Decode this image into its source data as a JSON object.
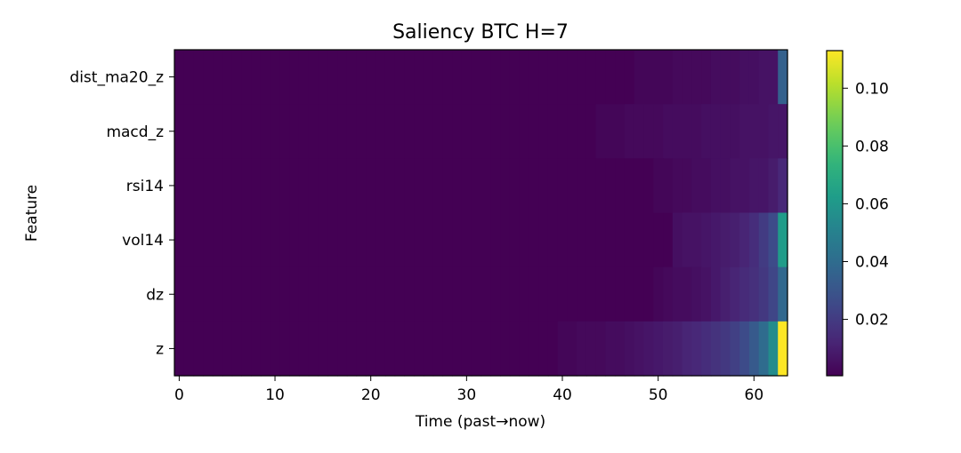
{
  "chart_data": {
    "type": "heatmap",
    "title": "Saliency BTC H=7",
    "xlabel": "Time (past→now)",
    "ylabel": "Feature",
    "features": [
      "dist_ma20_z",
      "macd_z",
      "rsi14",
      "vol14",
      "dz",
      "z"
    ],
    "x_range": [
      0,
      63
    ],
    "x_ticks": [
      0,
      10,
      20,
      30,
      40,
      50,
      60
    ],
    "colormap": "viridis",
    "color_range": [
      0.0005,
      0.113
    ],
    "colorbar_ticks": [
      0.02,
      0.04,
      0.06,
      0.08,
      0.1
    ],
    "colorbar_tick_labels": [
      "0.02",
      "0.04",
      "0.06",
      "0.08",
      "0.10"
    ],
    "rows": [
      {
        "feature": "dist_ma20_z",
        "start": 0.0005,
        "ramp_start": 48,
        "values_tail": [
          0.002,
          0.002,
          0.002,
          0.002,
          0.003,
          0.003,
          0.003,
          0.003,
          0.004,
          0.004,
          0.004,
          0.005,
          0.005,
          0.006,
          0.006,
          0.035
        ]
      },
      {
        "feature": "macd_z",
        "start": 0.0005,
        "ramp_start": 44,
        "values_tail": [
          0.002,
          0.002,
          0.002,
          0.003,
          0.003,
          0.003,
          0.003,
          0.004,
          0.004,
          0.004,
          0.004,
          0.005,
          0.005,
          0.005,
          0.005,
          0.006,
          0.006,
          0.006,
          0.007,
          0.007
        ]
      },
      {
        "feature": "rsi14",
        "start": 0.0005,
        "ramp_start": 50,
        "values_tail": [
          0.002,
          0.002,
          0.003,
          0.003,
          0.004,
          0.004,
          0.005,
          0.005,
          0.006,
          0.006,
          0.007,
          0.007,
          0.009,
          0.013
        ]
      },
      {
        "feature": "vol14",
        "start": 0.0005,
        "ramp_start": 52,
        "values_tail": [
          0.005,
          0.006,
          0.006,
          0.007,
          0.008,
          0.009,
          0.01,
          0.012,
          0.015,
          0.02,
          0.026,
          0.062
        ]
      },
      {
        "feature": "dz",
        "start": 0.0005,
        "ramp_start": 50,
        "values_tail": [
          0.002,
          0.003,
          0.004,
          0.004,
          0.005,
          0.006,
          0.008,
          0.01,
          0.012,
          0.014,
          0.016,
          0.019,
          0.024,
          0.038
        ]
      },
      {
        "feature": "z",
        "start": 0.0005,
        "ramp_start": 40,
        "values_tail": [
          0.002,
          0.002,
          0.003,
          0.003,
          0.003,
          0.004,
          0.004,
          0.005,
          0.006,
          0.007,
          0.008,
          0.009,
          0.01,
          0.012,
          0.013,
          0.015,
          0.017,
          0.019,
          0.022,
          0.026,
          0.032,
          0.04,
          0.055,
          0.113
        ]
      }
    ]
  }
}
